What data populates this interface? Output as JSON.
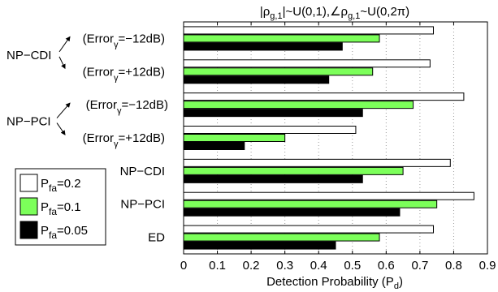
{
  "chart_data": {
    "type": "bar",
    "orientation": "horizontal",
    "title_parts": {
      "a": "|ρ",
      "a_sub": "g,1",
      "b": "|~U(0,1),∠ρ",
      "b_sub": "g,1",
      "c": "~U(0,2π)"
    },
    "xlabel_parts": {
      "main": "Detection Probability (P",
      "sub": "d",
      "tail": ")"
    },
    "xlim": [
      0,
      0.9
    ],
    "xticks": [
      "0",
      "0.1",
      "0.2",
      "0.3",
      "0.4",
      "0.5",
      "0.6",
      "0.7",
      "0.8",
      "0.9"
    ],
    "grid": "x-dotted",
    "legend_position": "left",
    "groups": [
      {
        "id": "npcdi-m12",
        "label_main": "(Error",
        "label_sub": "γ",
        "label_tail": "=−12dB)"
      },
      {
        "id": "npcdi-p12",
        "label_main": "(Error",
        "label_sub": "γ",
        "label_tail": "=+12dB)"
      },
      {
        "id": "nppci-m12",
        "label_main": "(Error",
        "label_sub": "γ",
        "label_tail": "=−12dB)"
      },
      {
        "id": "nppci-p12",
        "label_main": "(Error",
        "label_sub": "γ",
        "label_tail": "=+12dB)"
      },
      {
        "id": "npcdi",
        "label_main": "NP−CDI",
        "label_sub": "",
        "label_tail": ""
      },
      {
        "id": "nppci",
        "label_main": "NP−PCI",
        "label_sub": "",
        "label_tail": ""
      },
      {
        "id": "ed",
        "label_main": "ED",
        "label_sub": "",
        "label_tail": ""
      }
    ],
    "group_brackets": [
      "NP−CDI",
      "NP−PCI"
    ],
    "series": [
      {
        "name_main": "P",
        "name_sub": "fa",
        "name_tail": "=0.2",
        "color": "#ffffff",
        "values": [
          0.74,
          0.73,
          0.83,
          0.51,
          0.79,
          0.86,
          0.74
        ]
      },
      {
        "name_main": "P",
        "name_sub": "fa",
        "name_tail": "=0.1",
        "color": "#7cff5a",
        "values": [
          0.58,
          0.56,
          0.68,
          0.3,
          0.65,
          0.75,
          0.58
        ]
      },
      {
        "name_main": "P",
        "name_sub": "fa",
        "name_tail": "=0.05",
        "color": "#000000",
        "values": [
          0.47,
          0.43,
          0.53,
          0.18,
          0.53,
          0.64,
          0.45
        ]
      }
    ]
  }
}
